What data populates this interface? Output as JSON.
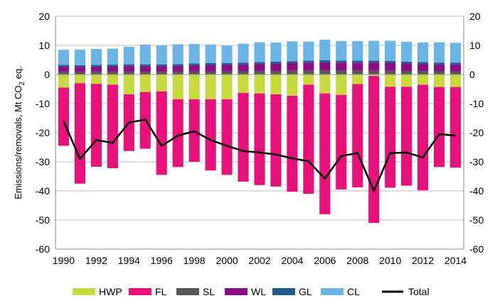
{
  "chart_data": {
    "type": "bar",
    "stacked": true,
    "title": "",
    "ylabel": "Emissions/removals, Mt CO",
    "ylabel_subscript": "2",
    "ylabel_suffix": " eq.",
    "ylim": [
      -60,
      20
    ],
    "yticks": [
      -60,
      -50,
      -40,
      -30,
      -20,
      -10,
      0,
      10,
      20
    ],
    "grid": true,
    "legend_position": "bottom",
    "categories": [
      1990,
      1991,
      1992,
      1993,
      1994,
      1995,
      1996,
      1997,
      1998,
      1999,
      2000,
      2001,
      2002,
      2003,
      2004,
      2005,
      2006,
      2007,
      2008,
      2009,
      2010,
      2011,
      2012,
      2013,
      2014
    ],
    "xtick_labels": [
      "1990",
      "1992",
      "1994",
      "1996",
      "1998",
      "2000",
      "2002",
      "2004",
      "2006",
      "2008",
      "2010",
      "2012",
      "2014"
    ],
    "series": [
      {
        "name": "HWP",
        "color": "#c8d93e",
        "values": [
          -4.5,
          -3,
          -3.2,
          -3.5,
          -6.8,
          -6,
          -5.8,
          -8.5,
          -8.5,
          -8.5,
          -8.5,
          -6.3,
          -6.5,
          -6.8,
          -7.3,
          -3.5,
          -6.5,
          -7,
          -3.3,
          -0.5,
          -4.2,
          -4.2,
          -3.5,
          -4.3,
          -4.3
        ]
      },
      {
        "name": "FL",
        "color": "#e6127a",
        "values": [
          -20,
          -34.5,
          -28.5,
          -28.7,
          -19.5,
          -19.5,
          -28.7,
          -23.3,
          -21.5,
          -24.5,
          -26,
          -30.5,
          -31.5,
          -31.7,
          -33,
          -37.5,
          -41.5,
          -32.5,
          -35.5,
          -50.5,
          -34.7,
          -34,
          -36.3,
          -27.5,
          -27.7
        ]
      },
      {
        "name": "SL",
        "color": "#555555",
        "values": [
          0.9,
          0.9,
          0.9,
          0.9,
          0.9,
          0.9,
          0.9,
          0.9,
          1.0,
          1.0,
          1.0,
          1.1,
          1.2,
          1.2,
          1.3,
          1.3,
          1.3,
          1.3,
          1.3,
          1.3,
          1.3,
          1.2,
          1.2,
          1.1,
          1.1
        ]
      },
      {
        "name": "WL",
        "color": "#8b0f84",
        "values": [
          1.8,
          1.7,
          1.8,
          1.9,
          2.0,
          2.0,
          2.0,
          2.1,
          2.2,
          2.3,
          2.3,
          2.4,
          2.5,
          2.6,
          2.7,
          2.8,
          2.9,
          2.8,
          2.8,
          2.8,
          2.7,
          2.6,
          2.5,
          2.4,
          2.4
        ]
      },
      {
        "name": "GL",
        "color": "#1f5c8c",
        "values": [
          0.6,
          0.6,
          0.6,
          0.6,
          0.6,
          0.6,
          0.6,
          0.6,
          0.6,
          0.6,
          0.6,
          0.6,
          0.6,
          0.6,
          0.6,
          0.7,
          0.7,
          0.7,
          0.7,
          0.7,
          0.7,
          0.6,
          0.6,
          0.6,
          0.6
        ]
      },
      {
        "name": "CL",
        "color": "#6ab4e6",
        "values": [
          5.2,
          5.3,
          5.5,
          5.5,
          6.0,
          6.8,
          6.5,
          6.8,
          6.7,
          6.4,
          6.0,
          6.5,
          6.8,
          6.6,
          6.8,
          6.5,
          7.1,
          6.7,
          6.7,
          6.8,
          6.9,
          6.8,
          6.7,
          7.0,
          6.8
        ]
      }
    ],
    "line_series": {
      "name": "Total",
      "color": "#000000",
      "values": [
        -16,
        -29,
        -22.5,
        -23.5,
        -16.5,
        -15.5,
        -24.5,
        -21,
        -19.5,
        -22.5,
        -24.5,
        -26.3,
        -26.8,
        -27.5,
        -28.8,
        -29.8,
        -35.8,
        -28,
        -27,
        -40,
        -27,
        -26.8,
        -28.5,
        -20.5,
        -21
      ]
    }
  }
}
